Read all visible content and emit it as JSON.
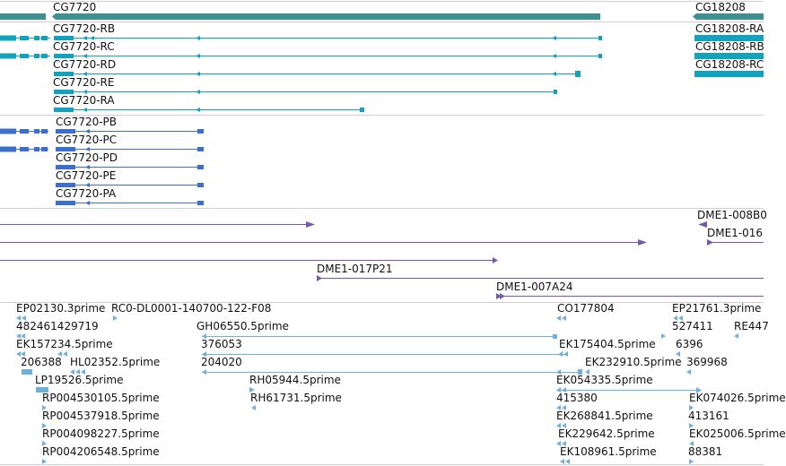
{
  "colors": {
    "gene": "#3c8f93",
    "transcript": "#10a3bf",
    "protein": "#3a6fd0",
    "clone": "#7659a8",
    "est": "#6fb0dc",
    "separator": "#cfcfcf"
  },
  "tracks": {
    "genes": [
      {
        "label": "CG7720"
      },
      {
        "label": "CG18208"
      }
    ],
    "transcripts": [
      {
        "label": "CG7720-RB"
      },
      {
        "label": "CG7720-RC"
      },
      {
        "label": "CG7720-RD"
      },
      {
        "label": "CG7720-RE"
      },
      {
        "label": "CG7720-RA"
      },
      {
        "label": "CG18208-RA"
      },
      {
        "label": "CG18208-RB"
      },
      {
        "label": "CG18208-RC"
      }
    ],
    "proteins": [
      {
        "label": "CG7720-PB"
      },
      {
        "label": "CG7720-PC"
      },
      {
        "label": "CG7720-PD"
      },
      {
        "label": "CG7720-PE"
      },
      {
        "label": "CG7720-PA"
      }
    ],
    "clones": [
      {
        "label": "DME1-008B0"
      },
      {
        "label": "DME1-016"
      },
      {
        "label": "DME1-017P21"
      },
      {
        "label": "DME1-007A24"
      }
    ],
    "ests": [
      {
        "label": "EP02130.3prime"
      },
      {
        "label": "RC0-DL0001-140700-122-F08"
      },
      {
        "label": "CO177804"
      },
      {
        "label": "EP21761.3prime"
      },
      {
        "label": "482461429719"
      },
      {
        "label": "GH06550.5prime"
      },
      {
        "label": "527411"
      },
      {
        "label": "RE447"
      },
      {
        "label": "EK157234.5prime"
      },
      {
        "label": "376053"
      },
      {
        "label": "EK175404.5prime"
      },
      {
        "label": "6396"
      },
      {
        "label": "206388"
      },
      {
        "label": "HL02352.5prime"
      },
      {
        "label": "204020"
      },
      {
        "label": "EK232910.5prime"
      },
      {
        "label": "369968"
      },
      {
        "label": "LP19526.5prime"
      },
      {
        "label": "RH05944.5prime"
      },
      {
        "label": "EK054335.5prime"
      },
      {
        "label": "RP004530105.5prime"
      },
      {
        "label": "RH61731.5prime"
      },
      {
        "label": "415380"
      },
      {
        "label": "EK074026.5prime"
      },
      {
        "label": "RP004537918.5prime"
      },
      {
        "label": "EK268841.5prime"
      },
      {
        "label": "413161"
      },
      {
        "label": "RP004098227.5prime"
      },
      {
        "label": "EK229642.5prime"
      },
      {
        "label": "EK025006.5prime"
      },
      {
        "label": "RP004206548.5prime"
      },
      {
        "label": "EK108961.5prime"
      },
      {
        "label": "88381"
      }
    ]
  }
}
